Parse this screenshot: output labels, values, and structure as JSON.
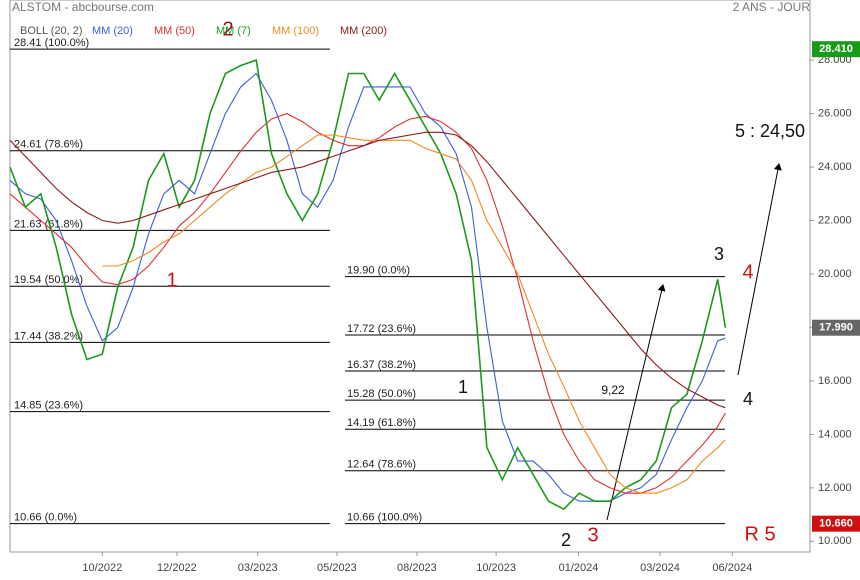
{
  "chart_data": {
    "type": "line",
    "title": "ALSTOM - abcbourse.com",
    "subtitle": "2 ANS - JOUR",
    "indicator_label": "BOLL (20, 2)",
    "x": [
      0,
      2,
      4,
      6,
      8,
      10,
      12,
      14,
      16,
      18,
      20,
      22,
      24,
      26,
      28,
      30,
      32,
      34,
      36,
      38,
      40,
      42,
      44,
      46,
      48,
      50,
      52,
      54,
      56,
      58,
      60,
      62,
      64,
      66,
      68,
      70,
      72,
      74,
      76,
      78,
      80,
      82,
      84,
      86,
      88,
      90,
      92,
      93
    ],
    "xlim": [
      0,
      104
    ],
    "xticks": [
      {
        "value": 12,
        "label": "10/2022"
      },
      {
        "value": 21.7,
        "label": "12/2022"
      },
      {
        "value": 32.2,
        "label": "03/2023"
      },
      {
        "value": 42.5,
        "label": "05/2023"
      },
      {
        "value": 52.9,
        "label": "08/2023"
      },
      {
        "value": 63.2,
        "label": "10/2023"
      },
      {
        "value": 73.9,
        "label": "01/2024"
      },
      {
        "value": 84.5,
        "label": "03/2024"
      },
      {
        "value": 93.9,
        "label": "06/2024"
      }
    ],
    "ylim": [
      9.6,
      30.25
    ],
    "yticks": [
      {
        "value": 10,
        "label": "10.000"
      },
      {
        "value": 12,
        "label": "12.000"
      },
      {
        "value": 14,
        "label": "14.000"
      },
      {
        "value": 16,
        "label": "16.000"
      },
      {
        "value": 18,
        "label": "18.000"
      },
      {
        "value": 20,
        "label": "20.000"
      },
      {
        "value": 22,
        "label": "22.000"
      },
      {
        "value": 24,
        "label": "24.000"
      },
      {
        "value": 26,
        "label": "26.000"
      },
      {
        "value": 28,
        "label": "28.000"
      }
    ],
    "series": [
      {
        "name": "MM (20)",
        "color": "#3a5fd9",
        "values": [
          23.5,
          23,
          22.8,
          22,
          20.5,
          18.8,
          17.5,
          18,
          19.5,
          21.5,
          23,
          23.5,
          23,
          24.5,
          26,
          27,
          27.5,
          26.5,
          25,
          23,
          22.5,
          23.5,
          25.5,
          27,
          27,
          27,
          27,
          26,
          25.5,
          24.5,
          22.5,
          18,
          14.5,
          13,
          13,
          12.5,
          11.8,
          11.5,
          11.5,
          11.5,
          11.8,
          12,
          12.5,
          13.8,
          15,
          16,
          17.5,
          17.6
        ]
      },
      {
        "name": "MM (50)",
        "color": "#e03030",
        "values": [
          23,
          22.5,
          22,
          21.5,
          21,
          20.3,
          19.7,
          19.6,
          19.8,
          20.3,
          21,
          21.8,
          22.3,
          23,
          23.8,
          24.6,
          25.3,
          25.8,
          26,
          25.7,
          25.3,
          25,
          24.8,
          24.8,
          25.1,
          25.5,
          25.8,
          25.9,
          25.7,
          25.3,
          24.7,
          23.5,
          21.8,
          19.8,
          17.5,
          15.5,
          14,
          13,
          12.3,
          12,
          11.8,
          11.8,
          12,
          12.4,
          13,
          13.6,
          14.3,
          14.8
        ]
      },
      {
        "name": "MM (7)",
        "color": "#1a9a1a",
        "values": [
          24,
          22.5,
          23,
          21,
          18.5,
          16.8,
          17,
          19.5,
          21,
          23.5,
          24.5,
          22.5,
          23.5,
          26,
          27.5,
          27.8,
          28,
          24.5,
          23,
          22,
          23,
          25,
          27.5,
          27.5,
          26.5,
          27.5,
          26.5,
          25.5,
          24.5,
          23,
          20.5,
          13.5,
          12.3,
          13.5,
          12.5,
          11.5,
          11.2,
          11.8,
          11.5,
          11.5,
          12,
          12.3,
          13,
          15,
          15.5,
          17.5,
          19.8,
          17.99
        ]
      },
      {
        "name": "MM (100)",
        "color": "#f08a20",
        "values": [
          null,
          null,
          null,
          null,
          null,
          null,
          20.3,
          20.3,
          20.5,
          20.8,
          21.2,
          21.5,
          22,
          22.5,
          23,
          23.4,
          23.8,
          24,
          24.4,
          24.8,
          25.2,
          25.2,
          25.1,
          25,
          25,
          25,
          25,
          24.7,
          24.5,
          24.3,
          23.5,
          22,
          21,
          20,
          18.5,
          17,
          15.8,
          14.5,
          13.5,
          12.5,
          12,
          11.8,
          11.8,
          12,
          12.3,
          13,
          13.5,
          13.8
        ]
      },
      {
        "name": "MM (200)",
        "color": "#8b1a1a",
        "values": [
          25,
          24.4,
          23.8,
          23.2,
          22.7,
          22.3,
          22,
          21.9,
          22,
          22.2,
          22.4,
          22.6,
          22.8,
          23,
          23.2,
          23.4,
          23.6,
          23.8,
          23.9,
          24,
          24.2,
          24.4,
          24.6,
          24.8,
          25,
          25.1,
          25.2,
          25.3,
          25.3,
          25.2,
          24.8,
          24.2,
          23.5,
          22.8,
          22.1,
          21.4,
          20.7,
          20,
          19.3,
          18.6,
          17.9,
          17.2,
          16.6,
          16.1,
          15.7,
          15.4,
          15.1,
          15
        ]
      }
    ],
    "fib_left": [
      {
        "value": 28.41,
        "label": "28.41  (100.0%)"
      },
      {
        "value": 24.61,
        "label": "24.61  (78.6%)"
      },
      {
        "value": 21.63,
        "label": "21.63  (61.8%)"
      },
      {
        "value": 19.54,
        "label": "19.54  (50.0%)"
      },
      {
        "value": 17.44,
        "label": "17.44  (38.2%)"
      },
      {
        "value": 14.85,
        "label": "14.85  (23.6%)"
      },
      {
        "value": 10.66,
        "label": "10.66  (0.0%)"
      }
    ],
    "fib_right": [
      {
        "value": 19.9,
        "label": "19.90  (0.0%)"
      },
      {
        "value": 17.72,
        "label": "17.72  (23.6%)"
      },
      {
        "value": 16.37,
        "label": "16.37  (38.2%)"
      },
      {
        "value": 15.28,
        "label": "15.28  (50.0%)"
      },
      {
        "value": 14.19,
        "label": "14.19  (61.8%)"
      },
      {
        "value": 12.64,
        "label": "12.64  (78.6%)"
      },
      {
        "value": 10.66,
        "label": "10.66  (100.0%)"
      }
    ],
    "price_tags": [
      {
        "value": 28.41,
        "label": "28.410",
        "color": "#1a9a1a"
      },
      {
        "value": 17.99,
        "label": "17.990",
        "color": "#666666"
      },
      {
        "value": 10.66,
        "label": "10.660",
        "color": "#d01010"
      }
    ],
    "annotations": [
      {
        "text": "1",
        "color": "#d01010"
      },
      {
        "text": "2",
        "color": "#8b1a1a"
      },
      {
        "text": "3",
        "color": "#d01010"
      },
      {
        "text": "4",
        "color": "#d01010"
      },
      {
        "text": "R 5",
        "color": "#d01010"
      },
      {
        "text": "1",
        "color": "#111111"
      },
      {
        "text": "2",
        "color": "#111111"
      },
      {
        "text": "3",
        "color": "#111111"
      },
      {
        "text": "4",
        "color": "#111111"
      },
      {
        "text": "5 : 24,50",
        "color": "#111111"
      },
      {
        "text": "9,22",
        "color": "#111111"
      }
    ]
  }
}
